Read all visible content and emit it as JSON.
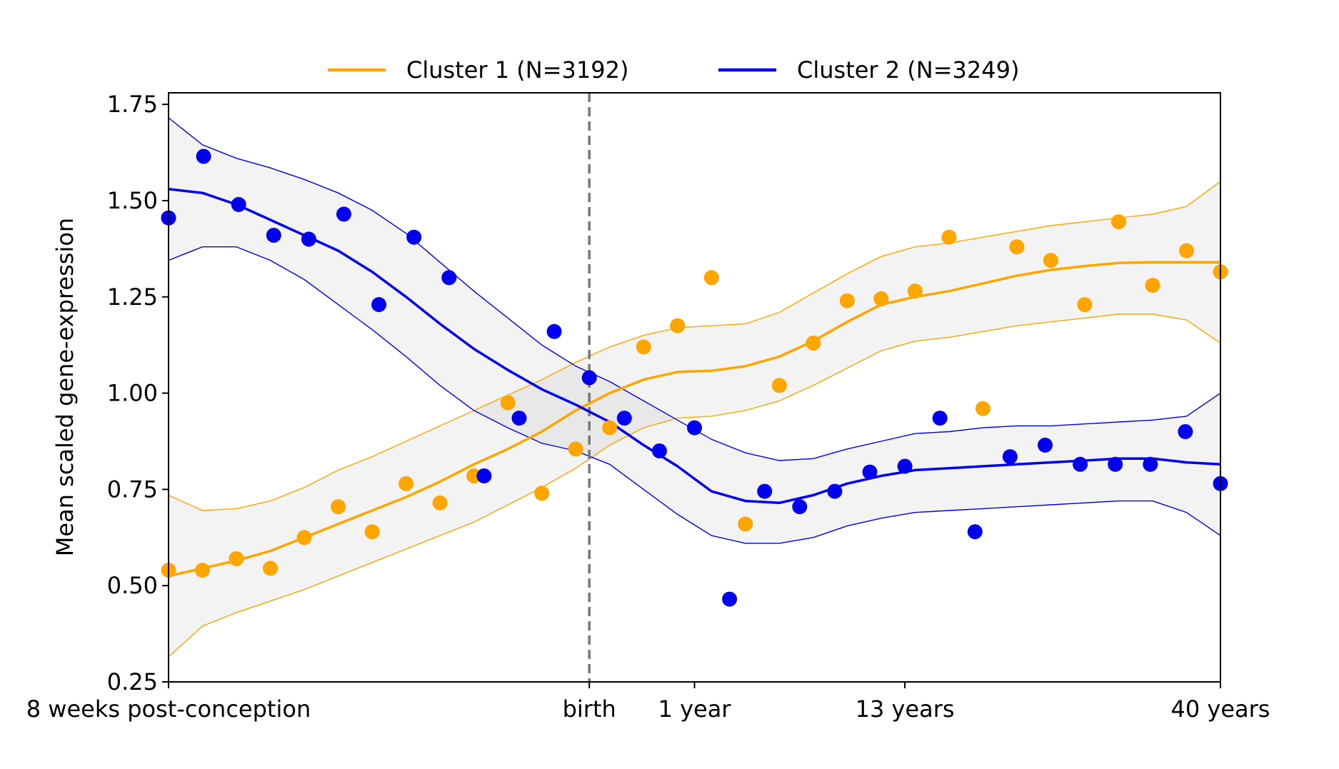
{
  "chart_data": {
    "type": "scatter",
    "title": "",
    "xlabel": "",
    "ylabel": "Mean scaled gene-expression",
    "ylim": [
      0.25,
      1.78
    ],
    "yticks": [
      0.25,
      0.5,
      0.75,
      1.0,
      1.25,
      1.5,
      1.75
    ],
    "ytick_labels": [
      "0.25",
      "0.50",
      "0.75",
      "1.00",
      "1.25",
      "1.50",
      "1.75"
    ],
    "xlim": [
      1,
      31
    ],
    "xticks": [
      {
        "x": 1,
        "label": "8 weeks post-conception"
      },
      {
        "x": 13,
        "label": "birth"
      },
      {
        "x": 16,
        "label": "1 year"
      },
      {
        "x": 22,
        "label": "13 years"
      },
      {
        "x": 31,
        "label": "40 years"
      }
    ],
    "vline": {
      "x": 13,
      "style": "dashed",
      "color": "#777777"
    },
    "legend_position": "top-center",
    "legend": [
      {
        "label": "Cluster 1 (N=3192)",
        "color": "#FFA500"
      },
      {
        "label": "Cluster 2 (N=3249)",
        "color": "#0000EE"
      }
    ],
    "series": [
      {
        "name": "Cluster 1 (N=3192)",
        "color": "#FFA500",
        "points": [
          0.54,
          0.54,
          0.57,
          0.545,
          0.625,
          0.705,
          0.64,
          0.765,
          0.715,
          0.785,
          0.975,
          0.74,
          0.855,
          0.91,
          1.12,
          1.175,
          1.3,
          0.66,
          1.02,
          1.13,
          1.24,
          1.245,
          1.265,
          1.405,
          0.96,
          1.38,
          1.345,
          1.23,
          1.445,
          1.28,
          1.37,
          1.315
        ],
        "fit": [
          0.525,
          0.545,
          0.565,
          0.59,
          0.625,
          0.66,
          0.695,
          0.73,
          0.77,
          0.815,
          0.855,
          0.9,
          0.955,
          1.0,
          1.035,
          1.055,
          1.058,
          1.07,
          1.095,
          1.135,
          1.185,
          1.23,
          1.25,
          1.265,
          1.285,
          1.305,
          1.32,
          1.33,
          1.338,
          1.34,
          1.34,
          1.34
        ],
        "ci_upper": [
          0.735,
          0.695,
          0.7,
          0.72,
          0.755,
          0.8,
          0.835,
          0.875,
          0.915,
          0.955,
          0.995,
          1.035,
          1.08,
          1.12,
          1.15,
          1.17,
          1.175,
          1.18,
          1.21,
          1.26,
          1.31,
          1.355,
          1.38,
          1.39,
          1.405,
          1.42,
          1.435,
          1.445,
          1.455,
          1.465,
          1.485,
          1.55
        ],
        "ci_lower": [
          0.315,
          0.395,
          0.43,
          0.46,
          0.49,
          0.525,
          0.56,
          0.595,
          0.63,
          0.665,
          0.71,
          0.755,
          0.805,
          0.865,
          0.91,
          0.935,
          0.94,
          0.955,
          0.98,
          1.02,
          1.065,
          1.11,
          1.135,
          1.145,
          1.16,
          1.175,
          1.185,
          1.195,
          1.205,
          1.205,
          1.19,
          1.13
        ]
      },
      {
        "name": "Cluster 2 (N=3249)",
        "color": "#0000EE",
        "points": [
          1.455,
          1.615,
          1.49,
          1.41,
          1.4,
          1.465,
          1.23,
          1.405,
          1.3,
          0.785,
          0.935,
          1.16,
          1.04,
          0.935,
          0.85,
          0.91,
          0.465,
          0.745,
          0.705,
          0.745,
          0.795,
          0.81,
          0.935,
          0.64,
          0.835,
          0.865,
          0.815,
          0.815,
          0.815,
          0.9,
          0.765
        ],
        "points_x": [
          1,
          2,
          3,
          4,
          5,
          6,
          7,
          8,
          9,
          10,
          11,
          12,
          13,
          14,
          15,
          16,
          17,
          18,
          19,
          20,
          21,
          22,
          23,
          24,
          25,
          26,
          27,
          28,
          29,
          30,
          31
        ],
        "fit": [
          1.53,
          1.52,
          1.49,
          1.45,
          1.41,
          1.37,
          1.315,
          1.25,
          1.18,
          1.115,
          1.06,
          1.01,
          0.97,
          0.925,
          0.865,
          0.81,
          0.745,
          0.72,
          0.715,
          0.735,
          0.765,
          0.785,
          0.8,
          0.805,
          0.81,
          0.815,
          0.82,
          0.825,
          0.83,
          0.83,
          0.82,
          0.815
        ],
        "ci_upper": [
          1.715,
          1.645,
          1.61,
          1.585,
          1.555,
          1.52,
          1.475,
          1.415,
          1.34,
          1.265,
          1.195,
          1.125,
          1.07,
          1.03,
          0.98,
          0.93,
          0.88,
          0.845,
          0.825,
          0.83,
          0.855,
          0.875,
          0.895,
          0.9,
          0.91,
          0.915,
          0.915,
          0.92,
          0.925,
          0.93,
          0.94,
          1.0
        ],
        "ci_lower": [
          1.345,
          1.38,
          1.38,
          1.345,
          1.295,
          1.23,
          1.165,
          1.095,
          1.02,
          0.955,
          0.91,
          0.87,
          0.85,
          0.815,
          0.75,
          0.685,
          0.63,
          0.61,
          0.61,
          0.625,
          0.655,
          0.675,
          0.69,
          0.695,
          0.7,
          0.705,
          0.71,
          0.715,
          0.72,
          0.72,
          0.69,
          0.63
        ]
      }
    ]
  }
}
